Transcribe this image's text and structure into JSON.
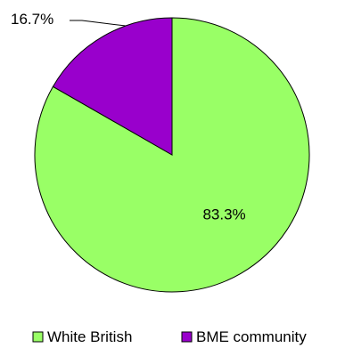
{
  "chart_data": {
    "type": "pie",
    "categories": [
      "White British",
      "BME community"
    ],
    "values": [
      83.3,
      16.7
    ],
    "data_labels": [
      "83.3%",
      "16.7%"
    ],
    "colors": [
      "#99ff66",
      "#9900cc"
    ],
    "title": "",
    "legend": {
      "placement": "bottom",
      "entries": [
        "White British",
        "BME community"
      ]
    }
  }
}
